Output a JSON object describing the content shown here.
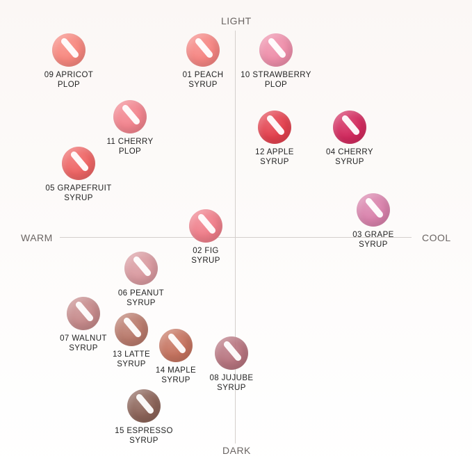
{
  "axes": {
    "top": "LIGHT",
    "bottom": "DARK",
    "left": "WARM",
    "right": "COOL"
  },
  "swatches": [
    {
      "code": "09",
      "line1": "09 APRICOT",
      "line2": "PLOP",
      "color": "#f7877e"
    },
    {
      "code": "01",
      "line1": "01 PEACH",
      "line2": "SYRUP",
      "color": "#f58582"
    },
    {
      "code": "10",
      "line1": "10 STRAWBERRY",
      "line2": "PLOP",
      "color": "#ee8eaa"
    },
    {
      "code": "11",
      "line1": "11 CHERRY",
      "line2": "PLOP",
      "color": "#f2848e"
    },
    {
      "code": "12",
      "line1": "12 APPLE",
      "line2": "SYRUP",
      "color": "#e3414e"
    },
    {
      "code": "04",
      "line1": "04 CHERRY",
      "line2": "SYRUP",
      "color": "#d22a5e"
    },
    {
      "code": "05",
      "line1": "05 GRAPEFRUIT",
      "line2": "SYRUP",
      "color": "#ee6565"
    },
    {
      "code": "03",
      "line1": "03 GRAPE",
      "line2": "SYRUP",
      "color": "#d982ac"
    },
    {
      "code": "02",
      "line1": "02 FIG",
      "line2": "SYRUP",
      "color": "#ef7e8a"
    },
    {
      "code": "06",
      "line1": "06 PEANUT",
      "line2": "SYRUP",
      "color": "#d99aa0"
    },
    {
      "code": "07",
      "line1": "07 WALNUT",
      "line2": "SYRUP",
      "color": "#c68a8b"
    },
    {
      "code": "13",
      "line1": "13 LATTE",
      "line2": "SYRUP",
      "color": "#b97a6c"
    },
    {
      "code": "14",
      "line1": "14 MAPLE",
      "line2": "SYRUP",
      "color": "#c5735f"
    },
    {
      "code": "08",
      "line1": "08 JUJUBE",
      "line2": "SYRUP",
      "color": "#b7747f"
    },
    {
      "code": "15",
      "line1": "15 ESPRESSO",
      "line2": "SYRUP",
      "color": "#8b6358"
    }
  ]
}
